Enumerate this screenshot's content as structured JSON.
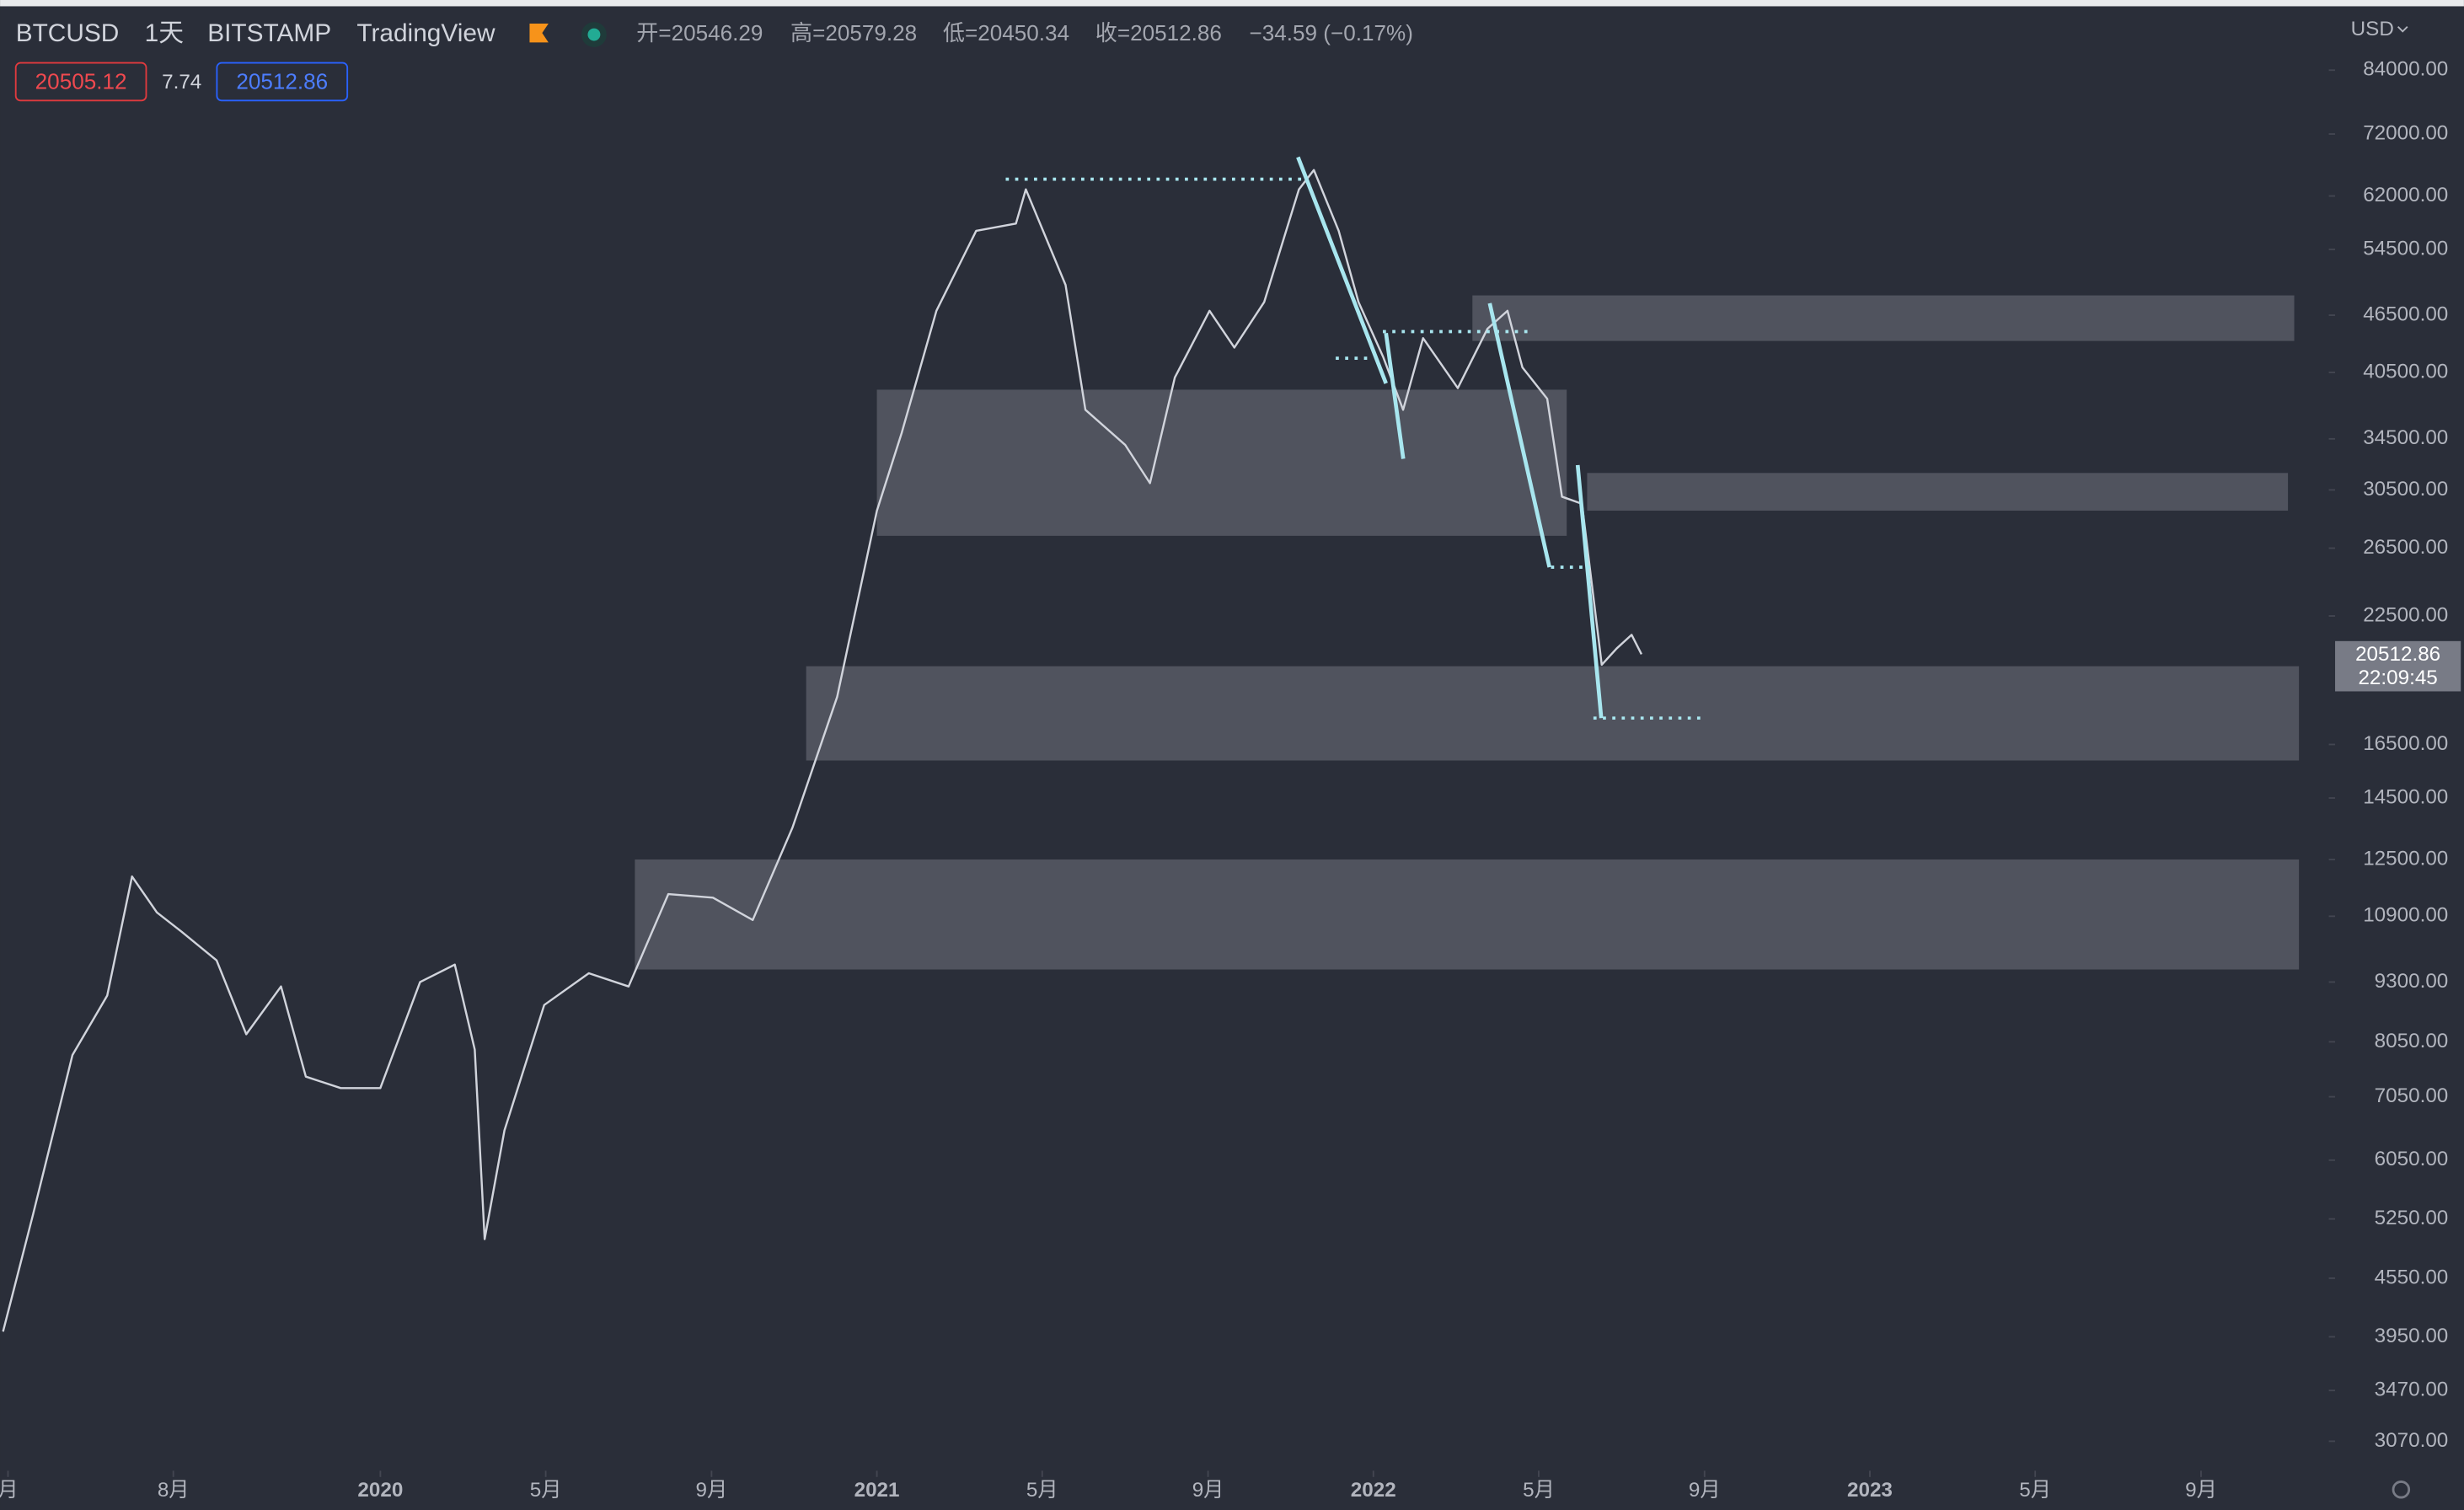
{
  "header": {
    "symbol": "BTCUSD",
    "interval": "1天",
    "exchange": "BITSTAMP",
    "source": "TradingView",
    "ohlc": [
      "开=20546.29",
      "高=20579.28",
      "低=20450.34",
      "收=20512.86"
    ],
    "change": "−34.59 (−0.17%)",
    "bid": "20505.12",
    "spread": "7.74",
    "ask": "20512.86",
    "last_price": "20512.86",
    "countdown": "22:09:45"
  },
  "chart_data": {
    "type": "line",
    "currency": "USD",
    "log_scale": true,
    "color": "#d1d4dc",
    "x": [
      2019.24,
      2019.3,
      2019.38,
      2019.45,
      2019.5,
      2019.55,
      2019.6,
      2019.67,
      2019.73,
      2019.8,
      2019.85,
      2019.92,
      2020.0,
      2020.08,
      2020.15,
      2020.19,
      2020.21,
      2020.25,
      2020.33,
      2020.42,
      2020.5,
      2020.58,
      2020.67,
      2020.75,
      2020.83,
      2020.92,
      2021.0,
      2021.05,
      2021.12,
      2021.2,
      2021.28,
      2021.3,
      2021.38,
      2021.42,
      2021.5,
      2021.55,
      2021.6,
      2021.67,
      2021.72,
      2021.78,
      2021.85,
      2021.88,
      2021.93,
      2021.97,
      2022.02,
      2022.06,
      2022.1,
      2022.17,
      2022.23,
      2022.27,
      2022.3,
      2022.35,
      2022.38,
      2022.42,
      2022.46,
      2022.49,
      2022.52,
      2022.54
    ],
    "values": [
      4000,
      5300,
      7800,
      9000,
      12000,
      11000,
      10500,
      9800,
      8200,
      9200,
      7400,
      7200,
      7200,
      9300,
      9700,
      7900,
      5000,
      6500,
      8800,
      9500,
      9200,
      11500,
      11400,
      10800,
      13500,
      18500,
      29000,
      35000,
      47000,
      57000,
      58000,
      63000,
      50000,
      37000,
      34000,
      31000,
      40000,
      47000,
      43000,
      48000,
      63000,
      66000,
      57000,
      48000,
      42000,
      37000,
      44000,
      39000,
      45000,
      47000,
      41000,
      38000,
      30000,
      29500,
      20000,
      20800,
      21500,
      20512.86
    ],
    "xlim": [
      2019.234,
      2023.918
    ],
    "xticks": [
      {
        "value": 2019.25,
        "label": "月"
      },
      {
        "value": 2019.583,
        "label": "8月"
      },
      {
        "value": 2020,
        "label": "2020"
      },
      {
        "value": 2020.333,
        "label": "5月"
      },
      {
        "value": 2020.667,
        "label": "9月"
      },
      {
        "value": 2021,
        "label": "2021"
      },
      {
        "value": 2021.333,
        "label": "5月"
      },
      {
        "value": 2021.667,
        "label": "9月"
      },
      {
        "value": 2022,
        "label": "2022"
      },
      {
        "value": 2022.333,
        "label": "5月"
      },
      {
        "value": 2022.667,
        "label": "9月"
      },
      {
        "value": 2023,
        "label": "2023"
      },
      {
        "value": 2023.333,
        "label": "5月"
      },
      {
        "value": 2023.667,
        "label": "9月"
      }
    ],
    "ylim": [
      2870,
      98000
    ],
    "yticks": [
      {
        "value": 84000,
        "label": "84000.00"
      },
      {
        "value": 72000,
        "label": "72000.00"
      },
      {
        "value": 62000,
        "label": "62000.00"
      },
      {
        "value": 54500,
        "label": "54500.00"
      },
      {
        "value": 46500,
        "label": "46500.00"
      },
      {
        "value": 40500,
        "label": "40500.00"
      },
      {
        "value": 34500,
        "label": "34500.00"
      },
      {
        "value": 30500,
        "label": "30500.00"
      },
      {
        "value": 26500,
        "label": "26500.00"
      },
      {
        "value": 22500,
        "label": "22500.00"
      },
      {
        "value": 16500,
        "label": "16500.00"
      },
      {
        "value": 14500,
        "label": "14500.00"
      },
      {
        "value": 12500,
        "label": "12500.00"
      },
      {
        "value": 10900,
        "label": "10900.00"
      },
      {
        "value": 9300,
        "label": "9300.00"
      },
      {
        "value": 8050,
        "label": "8050.00"
      },
      {
        "value": 7050,
        "label": "7050.00"
      },
      {
        "value": 6050,
        "label": "6050.00"
      },
      {
        "value": 5250,
        "label": "5250.00"
      },
      {
        "value": 4550,
        "label": "4550.00"
      },
      {
        "value": 3950,
        "label": "3950.00"
      },
      {
        "value": 3470,
        "label": "3470.00"
      },
      {
        "value": 3070,
        "label": "3070.00"
      }
    ]
  }
}
